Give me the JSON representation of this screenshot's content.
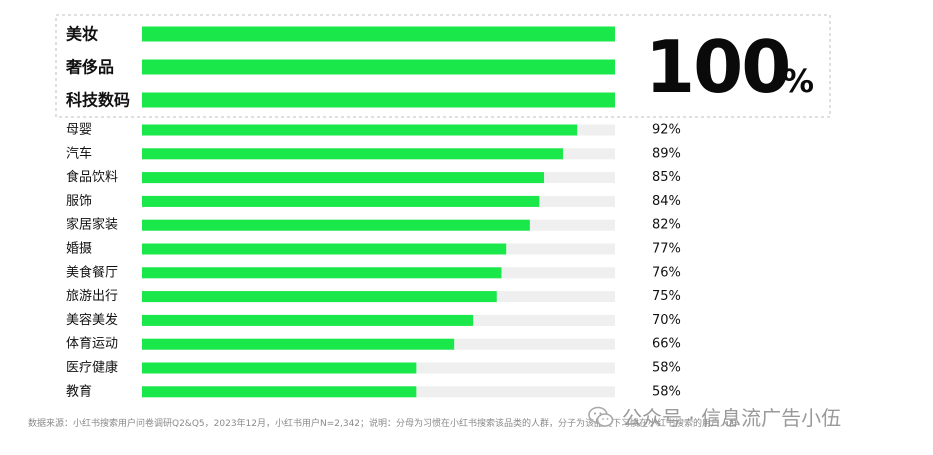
{
  "chart_data": {
    "type": "bar",
    "orientation": "horizontal",
    "categories": [
      "美妆",
      "奢侈品",
      "科技数码",
      "母婴",
      "汽车",
      "食品饮料",
      "服饰",
      "家居家装",
      "婚摄",
      "美食餐厅",
      "旅游出行",
      "美容美发",
      "体育运动",
      "医疗健康",
      "教育"
    ],
    "values": [
      100,
      100,
      100,
      92,
      89,
      85,
      84,
      82,
      77,
      76,
      75,
      70,
      66,
      58,
      58
    ],
    "value_labels": [
      "",
      "",
      "",
      "92%",
      "89%",
      "85%",
      "84%",
      "82%",
      "77%",
      "76%",
      "75%",
      "70%",
      "66%",
      "58%",
      "58%"
    ],
    "highlight": {
      "text": "100",
      "unit": "%"
    },
    "xlim": [
      0,
      100
    ],
    "grid": false,
    "colors": {
      "bar": "#1ae74a",
      "track": "#efefef",
      "text": "#111111",
      "highlight_border": "#bfbfbf"
    }
  },
  "footnote": "数据来源：小红书搜索用户问卷调研Q2&Q5，2023年12月，小红书用户N=2,342；说明：分母为习惯在小红书搜索该品类的人群，分子为该品类下习惯在小红书搜索的用户人群",
  "brand": {
    "text": "公众号 · 信息流广告小伍",
    "icon": "wechat-icon"
  }
}
